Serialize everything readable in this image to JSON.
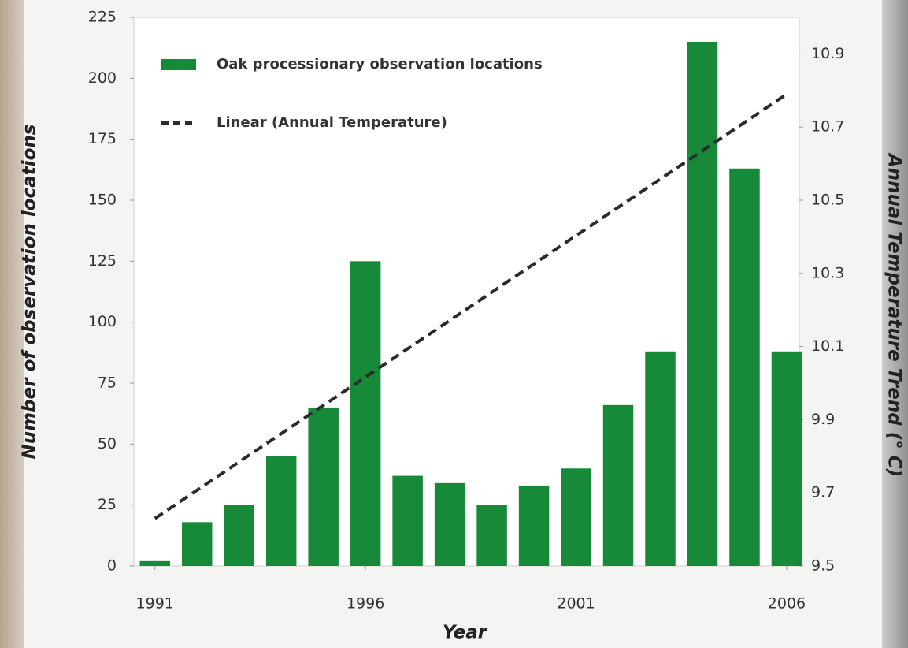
{
  "chart_data": {
    "type": "bar",
    "x_label": "Year",
    "y_label": "Number of observation locations",
    "y2_label": "Annual Temperature Trend (° C)",
    "x": [
      1991,
      1992,
      1993,
      1994,
      1995,
      1996,
      1997,
      1998,
      1999,
      2000,
      2001,
      2002,
      2003,
      2004,
      2005,
      2006
    ],
    "series": [
      {
        "name": "Oak processionary observation locations",
        "type": "bar",
        "color": "#178a3a",
        "values": [
          2,
          18,
          25,
          45,
          65,
          125,
          37,
          34,
          25,
          33,
          40,
          66,
          88,
          215,
          163,
          88
        ]
      },
      {
        "name": "Linear (Annual Temperature)",
        "type": "line",
        "axis": "y2",
        "color": "#2b2b2b",
        "dashed": true,
        "x": [
          1991,
          2006
        ],
        "values": [
          9.63,
          10.79
        ]
      }
    ],
    "xlim": [
      1990.5,
      2006.3
    ],
    "xticks": [
      1991,
      1996,
      2001,
      2006
    ],
    "ylim": [
      0,
      225
    ],
    "yticks": [
      0,
      25,
      50,
      75,
      100,
      125,
      150,
      175,
      200,
      225
    ],
    "y2lim": [
      9.5,
      11.0
    ],
    "y2ticks": [
      9.5,
      9.7,
      9.9,
      10.1,
      10.3,
      10.5,
      10.7,
      10.9
    ],
    "legend": "upper left",
    "grid": false
  }
}
